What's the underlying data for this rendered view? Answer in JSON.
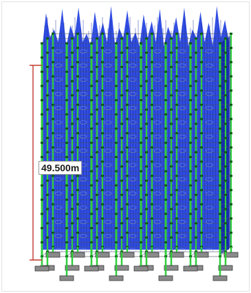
{
  "view": {
    "dimension_label": "49.500m"
  },
  "colors": {
    "wind_load": "#1f3fe0",
    "wind_load_dark": "#0c1f9a",
    "column_green": "#2fcf3a",
    "column_dark": "#0b5a14",
    "member_outline": "#46506b",
    "dimension_line": "#c0392b",
    "footing": "#8a8a8a",
    "footing_dark": "#3a3a3a",
    "background": "#ffffff"
  },
  "structure": {
    "column_rows": 3,
    "columns_per_row": 8,
    "floors": 15
  }
}
